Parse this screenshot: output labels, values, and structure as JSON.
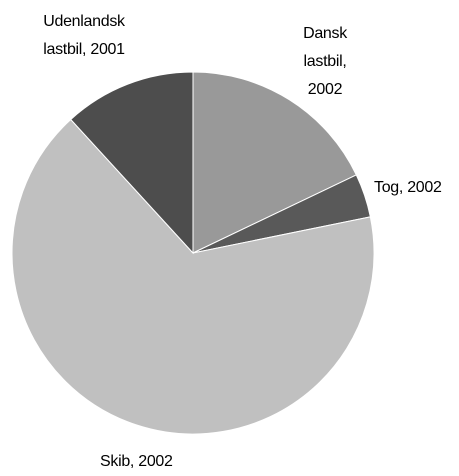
{
  "chart_data": {
    "type": "pie",
    "categories": [
      "Dansk lastbil, 2002",
      "Tog, 2002",
      "Skib, 2002",
      "Udenlandsk lastbil, 2001"
    ],
    "values": [
      17.9,
      3.9,
      66.4,
      11.8
    ],
    "colors": [
      "#999999",
      "#595959",
      "#c0c0c0",
      "#4d4d4d"
    ]
  }
}
